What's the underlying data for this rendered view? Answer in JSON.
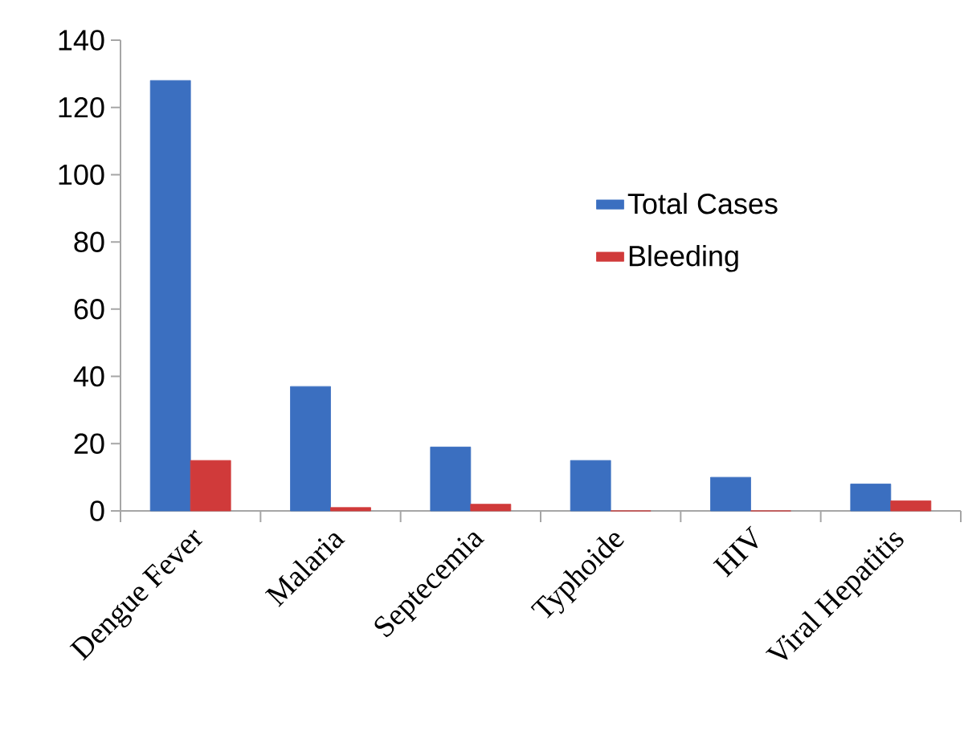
{
  "chart_data": {
    "type": "bar",
    "categories": [
      "Dengue Fever",
      "Malaria",
      "Septecemia",
      "Typhoide",
      "HIV",
      "Viral Hepatitis"
    ],
    "series": [
      {
        "name": "Total Cases",
        "color": "#3b6fc0",
        "values": [
          128,
          37,
          19,
          15,
          10,
          8
        ]
      },
      {
        "name": "Bleeding",
        "color": "#d03a3a",
        "values": [
          15,
          1,
          2,
          0,
          0,
          3
        ]
      }
    ],
    "ylim": [
      0,
      140
    ],
    "yticks": [
      0,
      20,
      40,
      60,
      80,
      100,
      120,
      140
    ],
    "legend": "right"
  }
}
